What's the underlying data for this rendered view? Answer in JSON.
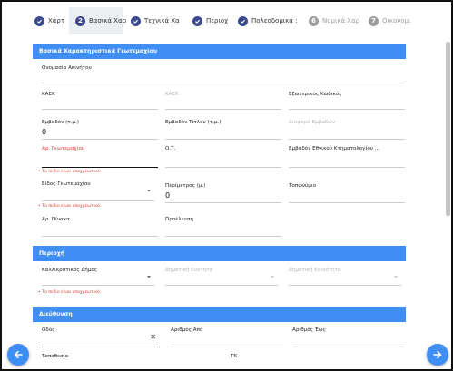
{
  "stepper": {
    "steps": [
      {
        "num": "",
        "label": "Χάρτ",
        "state": "done"
      },
      {
        "num": "2",
        "label": "Βασικά Χαρ",
        "state": "current"
      },
      {
        "num": "",
        "label": "Τεχνικά Χα",
        "state": "done"
      },
      {
        "num": "",
        "label": "Περιοχ",
        "state": "done"
      },
      {
        "num": "",
        "label": "Πολεοδομικά :",
        "state": "done"
      },
      {
        "num": "6",
        "label": "Νομικά Χαρ",
        "state": "todo"
      },
      {
        "num": "7",
        "label": "Οικονομι",
        "state": "todo"
      }
    ]
  },
  "sections": {
    "basic": {
      "title": "Βασικά Χαρακτηριστικά Γεωτεμαχίου"
    },
    "area": {
      "title": "Περιοχή"
    },
    "address": {
      "title": "Διεύθυνση"
    }
  },
  "fields": {
    "property_name": {
      "label": "Ονομασία Ακινήτου :"
    },
    "kaek_left": {
      "label": "ΚΑΕΚ"
    },
    "kaek_placeholder": {
      "label": "ΚΑΕΚ"
    },
    "internal_code": {
      "label": "Εξωτερικός Κωδικός"
    },
    "area": {
      "label": "Εμβαδόν (τ.μ.)",
      "value": "0"
    },
    "title_area": {
      "label": "Εμβαδόν Τίτλου (τ.μ.)"
    },
    "area_diff": {
      "label": "Διαφορά Εμβαδών"
    },
    "plot_number": {
      "label": "Αρ. Γεωτεμαχίου"
    },
    "ot": {
      "label": "Ο.Τ."
    },
    "ktimatologio_area": {
      "label": "Εμβαδόν Εθνικού Κτηματολογίου ..."
    },
    "plot_type": {
      "label": "Είδος Γεωτεμαχίου"
    },
    "perimeter": {
      "label": "Περίμετρος (μ.)",
      "value": "0"
    },
    "location": {
      "label": "Τοπωνύμιο"
    },
    "board_number": {
      "label": "Αρ. Πίνακα"
    },
    "origin": {
      "label": "Προέλευση"
    },
    "municipality": {
      "label": "Καλλικρατικός Δήμος"
    },
    "municipal_unit": {
      "label": "Δημοτική Ενότητα"
    },
    "community": {
      "label": "Δημοτική Κοινότητα"
    },
    "street": {
      "label": "Οδός",
      "clear": "✕"
    },
    "number_from": {
      "label": "Αριθμός Από"
    },
    "number_to": {
      "label": "Αριθμός Έως"
    },
    "locality": {
      "label": "Τοποθεσία"
    },
    "postal_code": {
      "label": "ΤΚ"
    }
  },
  "errors": {
    "required": "Το πεδίο είναι υποχρεωτικό."
  },
  "colors": {
    "accent": "#3f8ef3",
    "step_done": "#3b4a8e",
    "step_todo": "#9e9e9e",
    "error": "#e53935"
  },
  "icons": {
    "prev": "arrow-left-icon",
    "next": "arrow-right-icon",
    "check": "check-icon"
  }
}
